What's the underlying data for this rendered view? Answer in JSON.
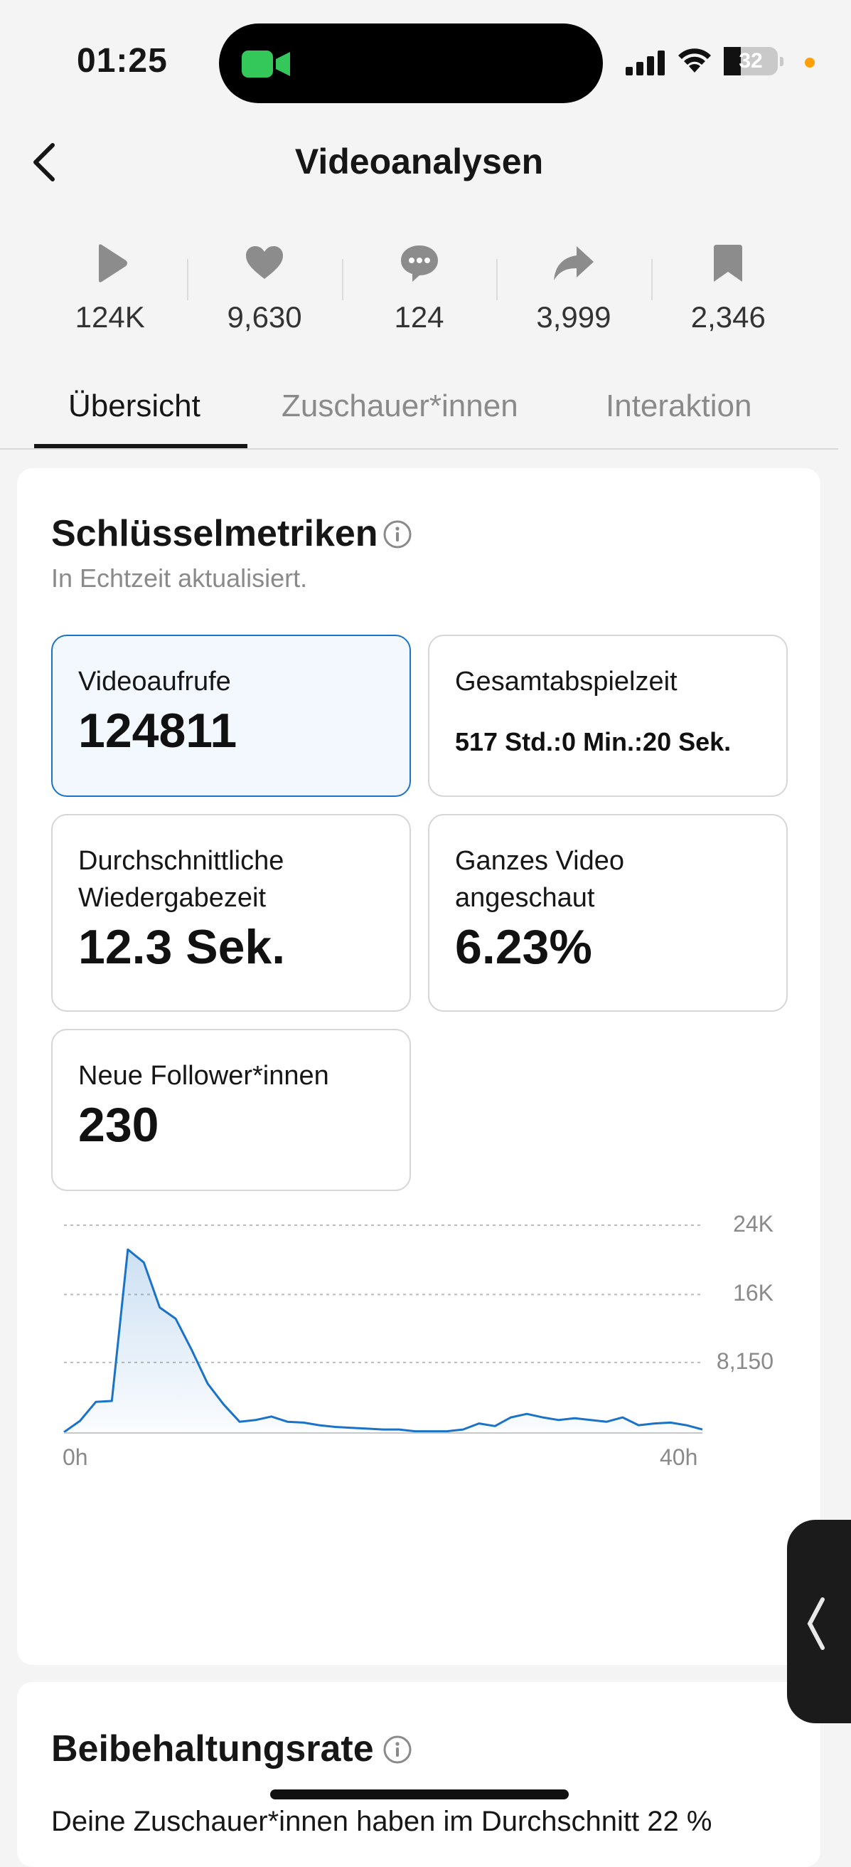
{
  "status_bar": {
    "time": "01:25",
    "battery": "32",
    "battery_level": 0.32,
    "icons": [
      "facetime-video-icon",
      "cellular-signal-icon",
      "wifi-icon",
      "battery-icon"
    ]
  },
  "header": {
    "title": "Videoanalysen",
    "back_icon": "chevron-left-icon"
  },
  "stats": [
    {
      "icon": "play-icon",
      "value": "124K"
    },
    {
      "icon": "heart-icon",
      "value": "9,630"
    },
    {
      "icon": "comment-icon",
      "value": "124"
    },
    {
      "icon": "share-icon",
      "value": "3,999"
    },
    {
      "icon": "bookmark-icon",
      "value": "2,346"
    }
  ],
  "tabs": [
    {
      "label": "Übersicht",
      "active": true
    },
    {
      "label": "Zuschauer*innen",
      "active": false
    },
    {
      "label": "Interaktion",
      "active": false
    }
  ],
  "key_metrics": {
    "title": "Schlüsselmetriken",
    "subtitle": "In Echtzeit aktualisiert.",
    "cards": [
      {
        "label": "Videoaufrufe",
        "value": "124811",
        "selected": true
      },
      {
        "label": "Gesamtabspielzeit",
        "value": "517 Std.:0 Min.:20 Sek.",
        "selected": false
      },
      {
        "label": "Durchschnittliche Wiedergabezeit",
        "value": "12.3 Sek.",
        "selected": false
      },
      {
        "label": "Ganzes Video angeschaut",
        "value": "6.23%",
        "selected": false
      },
      {
        "label": "Neue Follower*innen",
        "value": "230",
        "selected": false
      }
    ]
  },
  "chart_data": {
    "type": "area",
    "title": "",
    "xlabel": "",
    "ylabel": "",
    "x_tick_labels": [
      "0h",
      "40h"
    ],
    "y_tick_labels": [
      "8,150",
      "16K",
      "24K"
    ],
    "y_ticks": [
      8150,
      16000,
      24000
    ],
    "xlim": [
      0,
      40
    ],
    "ylim": [
      0,
      24000
    ],
    "grid": true,
    "color": "#1a73c9",
    "series": [
      {
        "x": [
          0,
          1,
          2,
          3,
          4,
          5,
          6,
          7,
          8,
          9,
          10,
          11,
          12,
          13,
          14,
          15,
          16,
          17,
          18,
          19,
          20,
          21,
          22,
          23,
          24,
          25,
          26,
          27,
          28,
          29,
          30,
          31,
          32,
          33,
          34,
          35,
          36,
          37,
          38,
          39,
          40
        ],
        "values": [
          100,
          1400,
          3600,
          3700,
          21200,
          19700,
          14500,
          13200,
          9600,
          5700,
          3300,
          1300,
          1500,
          1900,
          1300,
          1200,
          900,
          700,
          600,
          500,
          400,
          400,
          200,
          200,
          200,
          400,
          1100,
          800,
          1800,
          2200,
          1800,
          1500,
          1700,
          1500,
          1300,
          1800,
          900,
          1100,
          1200,
          900,
          400
        ]
      }
    ]
  },
  "retention": {
    "title": "Beibehaltungsrate",
    "text": "Deine Zuschauer*innen haben im Durchschnitt 22 %"
  }
}
